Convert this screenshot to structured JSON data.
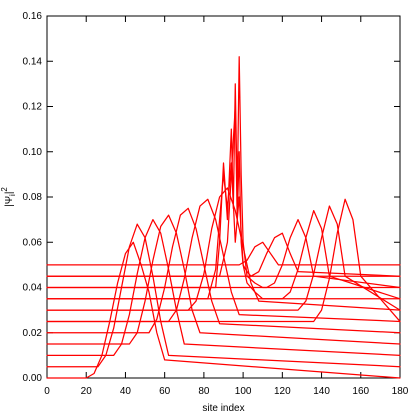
{
  "chart_data": {
    "type": "line",
    "title": "",
    "xlabel": "site index",
    "ylabel": "|Ψ_i|^2",
    "ylabel_parts": {
      "base": "|Ψ",
      "sub": "i",
      "close": "|",
      "sup": "2"
    },
    "xlim": [
      0,
      180
    ],
    "ylim": [
      0,
      0.16
    ],
    "xticks": [
      0,
      20,
      40,
      60,
      80,
      100,
      120,
      140,
      160,
      180
    ],
    "yticks": [
      0.0,
      0.02,
      0.04,
      0.06,
      0.08,
      0.1,
      0.12,
      0.14,
      0.16
    ],
    "ytick_labels": [
      "0.00",
      "0.02",
      "0.04",
      "0.06",
      "0.08",
      "0.10",
      "0.12",
      "0.14",
      "0.16"
    ],
    "grid": false,
    "line_color": "#ff0000",
    "series": [
      {
        "x": [
          0,
          20,
          24,
          28,
          32,
          36,
          40,
          44,
          48,
          52,
          56,
          60,
          180
        ],
        "y": [
          0.0,
          0.0,
          0.002,
          0.01,
          0.025,
          0.042,
          0.055,
          0.06,
          0.05,
          0.038,
          0.02,
          0.008,
          0.0
        ]
      },
      {
        "x": [
          0,
          26,
          30,
          34,
          38,
          42,
          46,
          50,
          54,
          58,
          62,
          180
        ],
        "y": [
          0.005,
          0.005,
          0.01,
          0.022,
          0.04,
          0.058,
          0.068,
          0.062,
          0.045,
          0.025,
          0.01,
          0.005
        ]
      },
      {
        "x": [
          0,
          34,
          38,
          42,
          46,
          50,
          54,
          58,
          62,
          66,
          70,
          180
        ],
        "y": [
          0.01,
          0.01,
          0.015,
          0.028,
          0.046,
          0.062,
          0.07,
          0.064,
          0.048,
          0.03,
          0.015,
          0.01
        ]
      },
      {
        "x": [
          0,
          42,
          46,
          50,
          54,
          58,
          62,
          66,
          70,
          74,
          78,
          180
        ],
        "y": [
          0.015,
          0.015,
          0.02,
          0.034,
          0.052,
          0.067,
          0.072,
          0.064,
          0.048,
          0.03,
          0.02,
          0.015
        ]
      },
      {
        "x": [
          0,
          52,
          56,
          60,
          64,
          68,
          72,
          76,
          80,
          84,
          88,
          180
        ],
        "y": [
          0.02,
          0.02,
          0.026,
          0.04,
          0.058,
          0.072,
          0.075,
          0.066,
          0.05,
          0.034,
          0.024,
          0.02
        ]
      },
      {
        "x": [
          0,
          62,
          66,
          70,
          74,
          78,
          82,
          86,
          90,
          94,
          98,
          180
        ],
        "y": [
          0.025,
          0.025,
          0.03,
          0.044,
          0.062,
          0.076,
          0.079,
          0.07,
          0.054,
          0.038,
          0.028,
          0.025
        ]
      },
      {
        "x": [
          0,
          72,
          76,
          80,
          84,
          88,
          92,
          96,
          100,
          104,
          108,
          180
        ],
        "y": [
          0.03,
          0.03,
          0.034,
          0.046,
          0.066,
          0.08,
          0.084,
          0.074,
          0.058,
          0.042,
          0.034,
          0.03
        ]
      },
      {
        "x": [
          0,
          82,
          86,
          88,
          90,
          92,
          94,
          96,
          98,
          100,
          102,
          106,
          110,
          180
        ],
        "y": [
          0.035,
          0.035,
          0.048,
          0.07,
          0.09,
          0.075,
          0.095,
          0.06,
          0.08,
          0.05,
          0.042,
          0.038,
          0.035,
          0.035
        ]
      },
      {
        "x": [
          0,
          86,
          88,
          90,
          92,
          94,
          95,
          96,
          97,
          98,
          99,
          100,
          102,
          106,
          110,
          180
        ],
        "y": [
          0.04,
          0.04,
          0.06,
          0.095,
          0.07,
          0.11,
          0.075,
          0.13,
          0.08,
          0.142,
          0.09,
          0.06,
          0.045,
          0.042,
          0.04,
          0.04
        ]
      },
      {
        "x": [
          0,
          88,
          92,
          94,
          96,
          97,
          98,
          99,
          100,
          102,
          104,
          180
        ],
        "y": [
          0.045,
          0.045,
          0.06,
          0.09,
          0.12,
          0.07,
          0.1,
          0.06,
          0.05,
          0.047,
          0.045,
          0.045
        ]
      },
      {
        "x": [
          0,
          98,
          102,
          106,
          110,
          114,
          118,
          180
        ],
        "y": [
          0.05,
          0.05,
          0.052,
          0.058,
          0.06,
          0.055,
          0.05,
          0.05
        ]
      },
      {
        "x": [
          0,
          104,
          108,
          112,
          116,
          120,
          124,
          128,
          180
        ],
        "y": [
          0.045,
          0.045,
          0.047,
          0.055,
          0.062,
          0.064,
          0.055,
          0.047,
          0.045
        ]
      },
      {
        "x": [
          0,
          112,
          116,
          120,
          124,
          128,
          132,
          136,
          180
        ],
        "y": [
          0.04,
          0.04,
          0.042,
          0.05,
          0.062,
          0.07,
          0.062,
          0.045,
          0.04
        ]
      },
      {
        "x": [
          0,
          120,
          124,
          128,
          132,
          136,
          140,
          144,
          180
        ],
        "y": [
          0.035,
          0.035,
          0.038,
          0.048,
          0.062,
          0.074,
          0.066,
          0.045,
          0.035
        ]
      },
      {
        "x": [
          0,
          128,
          132,
          136,
          140,
          144,
          148,
          152,
          180
        ],
        "y": [
          0.03,
          0.03,
          0.034,
          0.046,
          0.062,
          0.076,
          0.068,
          0.045,
          0.03
        ]
      },
      {
        "x": [
          0,
          136,
          140,
          144,
          148,
          152,
          156,
          160,
          180
        ],
        "y": [
          0.025,
          0.025,
          0.03,
          0.044,
          0.064,
          0.079,
          0.07,
          0.045,
          0.025
        ]
      }
    ]
  }
}
